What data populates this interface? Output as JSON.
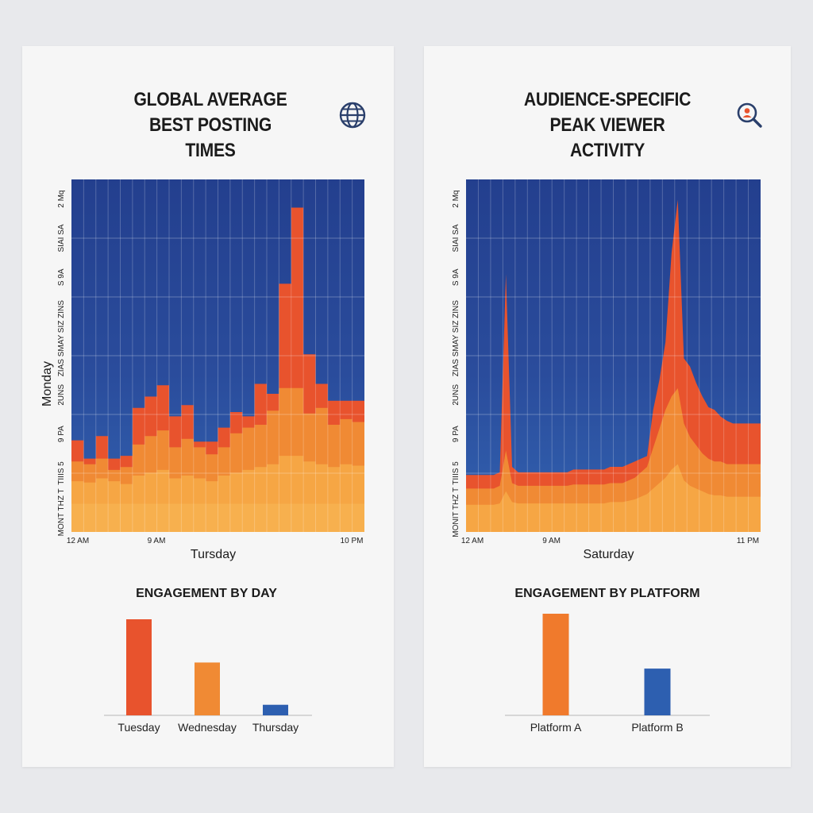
{
  "colors": {
    "blue_bg": "#2a4b9b",
    "red": "#e8532d",
    "orange": "#f08a34",
    "light_orange": "#f6a644",
    "blue_bar": "#2d5fb0"
  },
  "left_panel": {
    "title_line1": "GLOBAL AVERAGE",
    "title_line2": "BEST POSTING TIMES",
    "icon": "globe-icon"
  },
  "right_panel": {
    "title_line1": "AUDIENCE-SPECIFIC",
    "title_line2": "PEAK VIEWER ACTIVITY",
    "icon": "search-person-icon"
  },
  "chart_data": [
    {
      "type": "area",
      "title": "GLOBAL AVERAGE BEST POSTING TIMES",
      "xlabel": "Tursday",
      "ylabel": "Monday",
      "x_ticks": [
        "12 AM",
        "9 AM",
        "10 PM"
      ],
      "y_ticks": [
        "MONT THZ T",
        "TIIIS 5",
        "9 PA",
        "2UNS",
        "ZIAS SMAY",
        "SIZ ZINS",
        "S 9A",
        "SIAI SA",
        "2 Mq"
      ],
      "grid": true,
      "x": [
        0,
        1,
        2,
        3,
        4,
        5,
        6,
        7,
        8,
        9,
        10,
        11,
        12,
        13,
        14,
        15,
        16,
        17,
        18,
        19,
        20,
        21,
        22,
        23
      ],
      "series": [
        {
          "values": [
            0.65,
            0.52,
            0.68,
            0.52,
            0.54,
            0.88,
            0.96,
            1.04,
            0.82,
            0.9,
            0.64,
            0.64,
            0.74,
            0.85,
            0.82,
            1.05,
            0.98,
            1.76,
            2.3,
            1.26,
            1.05,
            0.93,
            0.93,
            0.93
          ]
        },
        {
          "values": [
            0.5,
            0.48,
            0.52,
            0.44,
            0.46,
            0.62,
            0.68,
            0.72,
            0.6,
            0.66,
            0.6,
            0.55,
            0.6,
            0.7,
            0.74,
            0.76,
            0.86,
            1.02,
            1.02,
            0.84,
            0.88,
            0.76,
            0.8,
            0.78
          ]
        },
        {
          "values": [
            0.36,
            0.35,
            0.38,
            0.36,
            0.34,
            0.4,
            0.42,
            0.44,
            0.38,
            0.4,
            0.38,
            0.36,
            0.4,
            0.42,
            0.44,
            0.46,
            0.48,
            0.54,
            0.54,
            0.5,
            0.48,
            0.46,
            0.48,
            0.47
          ]
        },
        {
          "values": [
            0.2,
            0.2,
            0.2,
            0.2,
            0.2,
            0.2,
            0.2,
            0.2,
            0.2,
            0.2,
            0.2,
            0.2,
            0.2,
            0.2,
            0.2,
            0.2,
            0.2,
            0.2,
            0.2,
            0.2,
            0.2,
            0.2,
            0.2,
            0.2
          ]
        }
      ],
      "ylim": [
        0,
        2.5
      ]
    },
    {
      "type": "area",
      "title": "AUDIENCE-SPECIFIC PEAK VIEWER ACTIVITY",
      "xlabel": "Saturday",
      "x_ticks": [
        "12 AM",
        "9 AM",
        "11 PM"
      ],
      "y_ticks": [
        "MONIT THZ T",
        "TIIIS 5",
        "9 PA",
        "2UNS",
        "ZIAS SMAY",
        "SIZ ZINS",
        "S 9A",
        "SIAI SA",
        "2 Mq"
      ],
      "grid": true,
      "x": [
        0,
        0.5,
        1,
        1.5,
        2,
        2.5,
        3,
        3.5,
        4,
        4.5,
        5,
        5.5,
        6,
        6.5,
        7,
        7.5,
        8,
        8.5,
        9,
        9.5,
        10,
        10.5,
        11,
        11.5,
        12,
        12.5,
        13,
        13.5,
        14,
        14.5,
        15,
        15.5,
        16,
        16.5,
        17,
        17.5,
        18,
        18.5,
        19,
        19.5,
        20,
        20.5,
        21,
        21.5,
        22,
        22.5,
        23,
        23.5
      ],
      "series": [
        {
          "values": [
            0.42,
            0.42,
            0.42,
            0.42,
            0.42,
            0.44,
            1.9,
            0.48,
            0.44,
            0.44,
            0.44,
            0.44,
            0.44,
            0.44,
            0.44,
            0.44,
            0.44,
            0.46,
            0.46,
            0.46,
            0.46,
            0.46,
            0.46,
            0.48,
            0.48,
            0.48,
            0.5,
            0.52,
            0.54,
            0.56,
            0.9,
            1.12,
            1.4,
            2.06,
            2.45,
            1.28,
            1.22,
            1.1,
            1.0,
            0.92,
            0.9,
            0.85,
            0.82,
            0.8,
            0.8,
            0.8,
            0.8,
            0.8
          ]
        },
        {
          "values": [
            0.32,
            0.32,
            0.32,
            0.32,
            0.32,
            0.34,
            0.6,
            0.36,
            0.34,
            0.34,
            0.34,
            0.34,
            0.34,
            0.34,
            0.34,
            0.34,
            0.34,
            0.35,
            0.35,
            0.35,
            0.35,
            0.35,
            0.35,
            0.36,
            0.36,
            0.36,
            0.38,
            0.4,
            0.44,
            0.48,
            0.62,
            0.76,
            0.9,
            1.0,
            1.06,
            0.8,
            0.7,
            0.64,
            0.58,
            0.54,
            0.52,
            0.52,
            0.5,
            0.5,
            0.5,
            0.5,
            0.5,
            0.5
          ]
        },
        {
          "values": [
            0.2,
            0.2,
            0.2,
            0.2,
            0.2,
            0.21,
            0.3,
            0.22,
            0.21,
            0.21,
            0.21,
            0.21,
            0.21,
            0.21,
            0.21,
            0.21,
            0.21,
            0.21,
            0.21,
            0.21,
            0.21,
            0.21,
            0.21,
            0.22,
            0.22,
            0.22,
            0.23,
            0.24,
            0.26,
            0.28,
            0.32,
            0.36,
            0.4,
            0.46,
            0.5,
            0.38,
            0.34,
            0.32,
            0.3,
            0.28,
            0.27,
            0.27,
            0.26,
            0.26,
            0.26,
            0.26,
            0.26,
            0.26
          ]
        }
      ],
      "ylim": [
        0,
        2.6
      ]
    },
    {
      "type": "bar",
      "title": "ENGAGEMENT BY DAY",
      "categories": [
        "Tuesday",
        "Wednesday",
        "Thursday"
      ],
      "values": [
        100,
        55,
        11
      ],
      "colors": [
        "#e8532d",
        "#f08a34",
        "#2d5fb0"
      ],
      "ylim": [
        0,
        100
      ]
    },
    {
      "type": "bar",
      "title": "ENGAGEMENT BY PLATFORM",
      "categories": [
        "Platform A",
        "Platform B"
      ],
      "values": [
        100,
        46
      ],
      "colors": [
        "#f07a2c",
        "#2d5fb0"
      ],
      "ylim": [
        0,
        100
      ]
    }
  ]
}
